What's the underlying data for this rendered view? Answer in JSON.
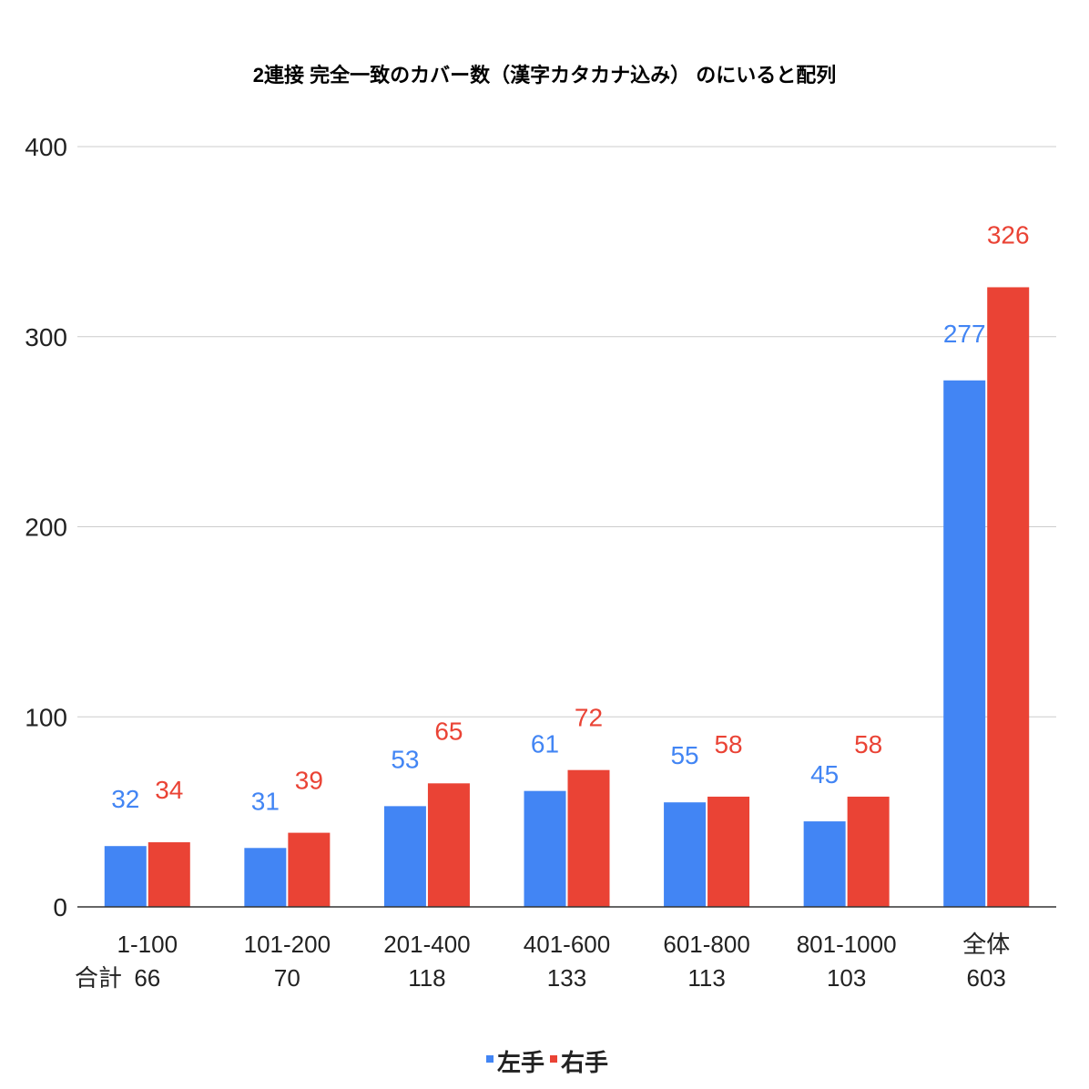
{
  "chart_data": {
    "type": "bar",
    "title": "2連接 完全一致のカバー数（漢字カタカナ込み） のにいると配列",
    "categories": [
      "1-100",
      "101-200",
      "201-400",
      "401-600",
      "601-800",
      "801-1000",
      "全体"
    ],
    "row_label": "合計",
    "totals": [
      "66",
      "70",
      "118",
      "133",
      "113",
      "103",
      "603"
    ],
    "series": [
      {
        "name": "左手",
        "color": "#4285f4",
        "values": [
          32,
          31,
          53,
          61,
          55,
          45,
          277
        ]
      },
      {
        "name": "右手",
        "color": "#ea4335",
        "values": [
          34,
          39,
          65,
          72,
          58,
          58,
          326
        ]
      }
    ],
    "ylim": [
      0,
      400
    ],
    "yticks": [
      0,
      100,
      200,
      300,
      400
    ],
    "grid": true,
    "legend_position": "bottom",
    "xlabel": "",
    "ylabel": ""
  }
}
